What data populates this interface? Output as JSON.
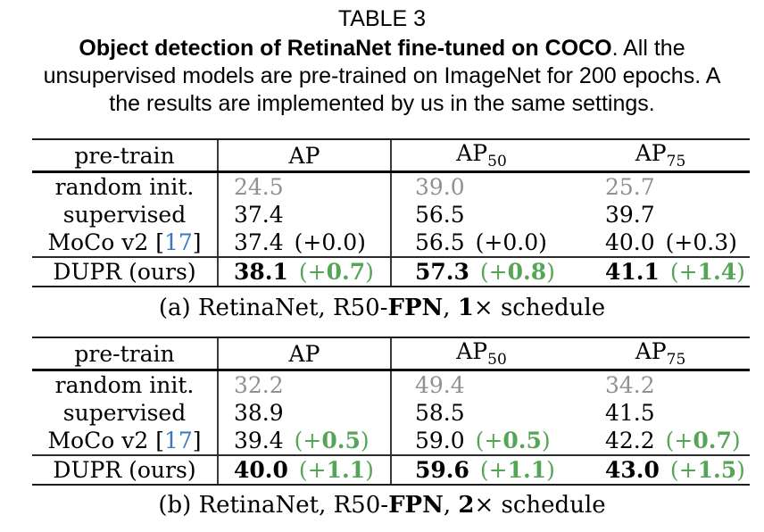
{
  "colors": {
    "green": "#55a556",
    "blue": "#3b78c2",
    "gray": "#919191"
  },
  "caption": {
    "title": "TABLE 3",
    "bold": "Object detection of RetinaNet fine-tuned on COCO",
    "after_bold": ". All the",
    "line2": "unsupervised models are pre-trained on ImageNet for 200 epochs. A",
    "line3": "the results are implemented by us in the same settings."
  },
  "tables": [
    {
      "headers": [
        {
          "label": "pre-train",
          "sub": ""
        },
        {
          "label": "AP",
          "sub": ""
        },
        {
          "label": "AP",
          "sub": "50"
        },
        {
          "label": "AP",
          "sub": "75"
        }
      ],
      "rows": [
        {
          "label": {
            "pre": "random init.",
            "cite": "",
            "post": ""
          },
          "cells": [
            {
              "main": "24.5"
            },
            {
              "main": "39.0"
            },
            {
              "main": "25.7"
            }
          ]
        },
        {
          "label": {
            "pre": "supervised",
            "cite": "",
            "post": ""
          },
          "cells": [
            {
              "main": "37.4"
            },
            {
              "main": "56.5"
            },
            {
              "main": "39.7"
            }
          ]
        },
        {
          "label": {
            "pre": "MoCo v2 [",
            "cite": "17",
            "post": "]"
          },
          "cells": [
            {
              "main": "37.4",
              "diff_open": "(+",
              "diff_num": "0.0",
              "diff_close": ")"
            },
            {
              "main": "56.5",
              "diff_open": "(+",
              "diff_num": "0.0",
              "diff_close": ")"
            },
            {
              "main": "40.0",
              "diff_open": "(+",
              "diff_num": "0.3",
              "diff_close": ")"
            }
          ]
        },
        {
          "label": {
            "pre": "DUPR (ours)",
            "cite": "",
            "post": ""
          },
          "cells": [
            {
              "main": "38.1",
              "diff_open": "(+",
              "diff_num": "0.7",
              "diff_close": ")"
            },
            {
              "main": "57.3",
              "diff_open": "(+",
              "diff_num": "0.8",
              "diff_close": ")"
            },
            {
              "main": "41.1",
              "diff_open": "(+",
              "diff_num": "1.4",
              "diff_close": ")"
            }
          ]
        }
      ],
      "caption": {
        "prefix": "(a) RetinaNet, R50-",
        "fpn": "FPN",
        "mid": ", ",
        "mult": "1",
        "suffix": "× schedule"
      }
    },
    {
      "headers": [
        {
          "label": "pre-train",
          "sub": ""
        },
        {
          "label": "AP",
          "sub": ""
        },
        {
          "label": "AP",
          "sub": "50"
        },
        {
          "label": "AP",
          "sub": "75"
        }
      ],
      "rows": [
        {
          "label": {
            "pre": "random init.",
            "cite": "",
            "post": ""
          },
          "cells": [
            {
              "main": "32.2"
            },
            {
              "main": "49.4"
            },
            {
              "main": "34.2"
            }
          ]
        },
        {
          "label": {
            "pre": "supervised",
            "cite": "",
            "post": ""
          },
          "cells": [
            {
              "main": "38.9"
            },
            {
              "main": "58.5"
            },
            {
              "main": "41.5"
            }
          ]
        },
        {
          "label": {
            "pre": "MoCo v2 [",
            "cite": "17",
            "post": "]"
          },
          "cells": [
            {
              "main": "39.4",
              "diff_open": "(+",
              "diff_num": "0.5",
              "diff_close": ")"
            },
            {
              "main": "59.0",
              "diff_open": "(+",
              "diff_num": "0.5",
              "diff_close": ")"
            },
            {
              "main": "42.2",
              "diff_open": "(+",
              "diff_num": "0.7",
              "diff_close": ")"
            }
          ]
        },
        {
          "label": {
            "pre": "DUPR (ours)",
            "cite": "",
            "post": ""
          },
          "cells": [
            {
              "main": "40.0",
              "diff_open": "(+",
              "diff_num": "1.1",
              "diff_close": ")"
            },
            {
              "main": "59.6",
              "diff_open": "(+",
              "diff_num": "1.1",
              "diff_close": ")"
            },
            {
              "main": "43.0",
              "diff_open": "(+",
              "diff_num": "1.5",
              "diff_close": ")"
            }
          ]
        }
      ],
      "caption": {
        "prefix": "(b) RetinaNet, R50-",
        "fpn": "FPN",
        "mid": ", ",
        "mult": "2",
        "suffix": "× schedule"
      }
    }
  ]
}
